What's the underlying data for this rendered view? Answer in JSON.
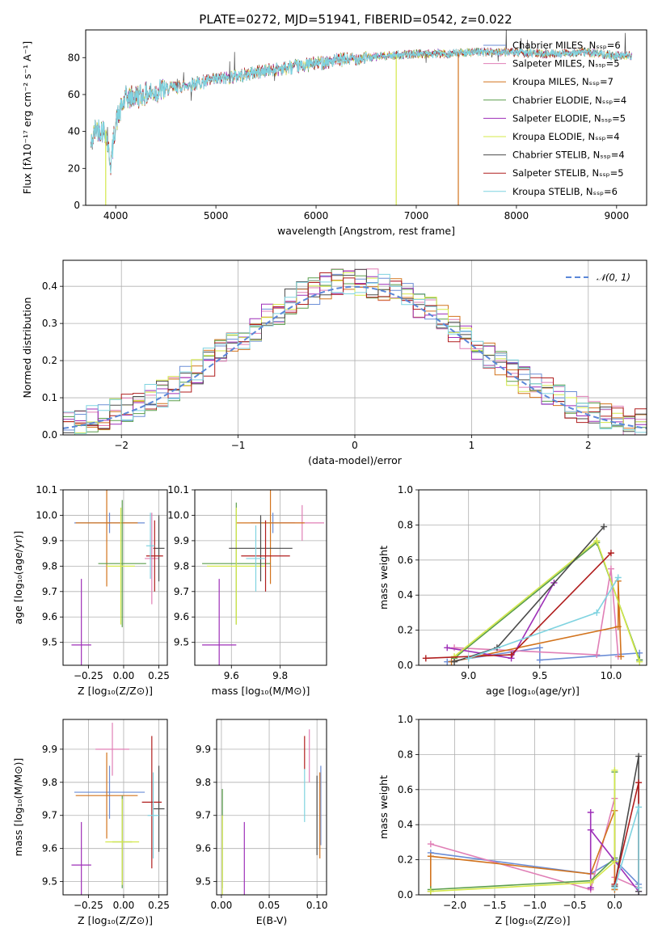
{
  "chart_data": [
    {
      "type": "line",
      "title": "PLATE=0272, MJD=51941, FIBERID=0542, z=0.022",
      "xlabel": "wavelength [Angstrom, rest frame]",
      "ylabel": "Flux [fλ10⁻¹⁷ erg cm⁻² s⁻¹ A⁻¹]",
      "xlim": [
        3700,
        9300
      ],
      "ylim": [
        0,
        95
      ],
      "xticks": [
        "4000",
        "5000",
        "6000",
        "7000",
        "8000",
        "9000"
      ],
      "yticks": [
        "0",
        "20",
        "40",
        "60",
        "80"
      ],
      "legend_position": "upper right",
      "series": [
        {
          "name": "Chabrier MILES, N_SSP=6",
          "color": "#6b8dd6"
        },
        {
          "name": "Salpeter MILES, N_SSP=5",
          "color": "#e07fb6"
        },
        {
          "name": "Kroupa MILES, N_SSP=7",
          "color": "#d2731d"
        },
        {
          "name": "Chabrier ELODIE, N_SSP=4",
          "color": "#5a9e4b"
        },
        {
          "name": "Salpeter ELODIE, N_SSP=5",
          "color": "#9e2fb8"
        },
        {
          "name": "Kroupa ELODIE, N_SSP=4",
          "color": "#d4e84a"
        },
        {
          "name": "Chabrier STELIB, N_SSP=4",
          "color": "#4a4a4a"
        },
        {
          "name": "Salpeter STELIB, N_SSP=5",
          "color": "#b01e1e"
        },
        {
          "name": "Kroupa STELIB, N_SSP=6",
          "color": "#7fd3e0"
        }
      ],
      "spectrum_trend": [
        [
          3750,
          32
        ],
        [
          3800,
          42
        ],
        [
          3900,
          40
        ],
        [
          3950,
          22
        ],
        [
          4000,
          45
        ],
        [
          4100,
          58
        ],
        [
          4300,
          60
        ],
        [
          4500,
          63
        ],
        [
          4800,
          66
        ],
        [
          5000,
          68
        ],
        [
          5200,
          70
        ],
        [
          5500,
          73
        ],
        [
          5800,
          75
        ],
        [
          6000,
          77
        ],
        [
          6300,
          79
        ],
        [
          6500,
          80
        ],
        [
          6700,
          81
        ],
        [
          7000,
          82
        ],
        [
          7300,
          82
        ],
        [
          7600,
          83
        ],
        [
          7900,
          83
        ],
        [
          8300,
          82
        ],
        [
          8700,
          83
        ],
        [
          9000,
          81
        ],
        [
          9150,
          81
        ]
      ],
      "dropouts": [
        {
          "x": 3900,
          "series": "Kroupa ELODIE, N_SSP=4"
        },
        {
          "x": 6800,
          "series": "Kroupa ELODIE, N_SSP=4"
        },
        {
          "x": 7420,
          "series": "Kroupa MILES, N_SSP=7"
        }
      ]
    },
    {
      "type": "line",
      "xlabel": "(data-model)/error",
      "ylabel": "Normed distribution",
      "xlim": [
        -2.5,
        2.5
      ],
      "ylim": [
        0,
        0.47
      ],
      "xticks": [
        "−2",
        "−1",
        "0",
        "1",
        "2"
      ],
      "yticks": [
        "0.0",
        "0.1",
        "0.2",
        "0.3",
        "0.4"
      ],
      "grid": true,
      "legend_position": "upper right",
      "reference_curve": {
        "name": "𝒩(0, 1)",
        "color": "#5b87d8",
        "mean": 0,
        "sigma": 1
      },
      "bin_width": 0.1,
      "histograms": "one step histogram per model, each following the N(0,1) curve with scatter of about ±0.04"
    },
    {
      "type": "scatter",
      "xlabel": "Z [log₁₀(Z/Z⊙)]",
      "ylabel": "age  [log₁₀(age/yr)]",
      "xlim": [
        -0.43,
        0.31
      ],
      "ylim": [
        9.41,
        10.1
      ],
      "xticks": [
        "−0.25",
        "0.00",
        "0.25"
      ],
      "yticks": [
        "9.5",
        "9.6",
        "9.7",
        "9.8",
        "9.9",
        "10.0",
        "10.1"
      ],
      "grid": true,
      "points": [
        {
          "series": "Chabrier MILES",
          "x": -0.1,
          "y": 9.97,
          "xerr": 0.25,
          "yerr": 0.04
        },
        {
          "series": "Salpeter MILES",
          "x": 0.2,
          "y": 9.83,
          "xerr": 0.05,
          "yerr": 0.18
        },
        {
          "series": "Kroupa MILES",
          "x": -0.12,
          "y": 9.97,
          "xerr": 0.22,
          "yerr": 0.25
        },
        {
          "series": "Chabrier ELODIE",
          "x": -0.01,
          "y": 9.81,
          "xerr": 0.17,
          "yerr": 0.25
        },
        {
          "series": "Salpeter ELODIE",
          "x": -0.3,
          "y": 9.49,
          "xerr": 0.07,
          "yerr": 0.26
        },
        {
          "series": "Kroupa ELODIE",
          "x": -0.02,
          "y": 9.8,
          "xerr": 0.1,
          "yerr": 0.23
        },
        {
          "series": "Chabrier STELIB",
          "x": 0.25,
          "y": 9.87,
          "xerr": 0.04,
          "yerr": 0.13
        },
        {
          "series": "Salpeter STELIB",
          "x": 0.22,
          "y": 9.84,
          "xerr": 0.06,
          "yerr": 0.14
        },
        {
          "series": "Kroupa STELIB",
          "x": 0.19,
          "y": 9.88,
          "xerr": 0.03,
          "yerr": 0.13
        }
      ]
    },
    {
      "type": "scatter",
      "xlabel": "mass [log₁₀(M/M⊙)]",
      "ylabel": "",
      "xlim": [
        9.45,
        9.99
      ],
      "ylim": [
        9.41,
        10.1
      ],
      "xticks": [
        "9.6",
        "9.8"
      ],
      "yticks": [
        "9.5",
        "9.6",
        "9.7",
        "9.8",
        "9.9",
        "10.0",
        "10.1"
      ],
      "grid": true,
      "points": [
        {
          "series": "Chabrier MILES",
          "x": 9.77,
          "y": 9.97,
          "xerr": 0.09,
          "yerr": 0.04
        },
        {
          "series": "Salpeter MILES",
          "x": 9.89,
          "y": 9.97,
          "xerr": 0.09,
          "yerr": 0.07
        },
        {
          "series": "Kroupa MILES",
          "x": 9.76,
          "y": 9.97,
          "xerr": 0.14,
          "yerr": 0.24
        },
        {
          "series": "Chabrier ELODIE",
          "x": 9.62,
          "y": 9.81,
          "xerr": 0.14,
          "yerr": 0.24
        },
        {
          "series": "Salpeter ELODIE",
          "x": 9.55,
          "y": 9.49,
          "xerr": 0.07,
          "yerr": 0.26
        },
        {
          "series": "Kroupa ELODIE",
          "x": 9.62,
          "y": 9.8,
          "xerr": 0.12,
          "yerr": 0.23
        },
        {
          "series": "Chabrier STELIB",
          "x": 9.72,
          "y": 9.87,
          "xerr": 0.13,
          "yerr": 0.13
        },
        {
          "series": "Salpeter STELIB",
          "x": 9.74,
          "y": 9.84,
          "xerr": 0.1,
          "yerr": 0.14
        },
        {
          "series": "Kroupa STELIB",
          "x": 9.7,
          "y": 9.83,
          "xerr": 0.04,
          "yerr": 0.13
        }
      ]
    },
    {
      "type": "line",
      "xlabel": "age  [log₁₀(age/yr)]",
      "ylabel": "mass weight",
      "xlim": [
        8.65,
        10.25
      ],
      "ylim": [
        0,
        1
      ],
      "xticks": [
        "9.0",
        "9.5",
        "10.0"
      ],
      "yticks": [
        "0.0",
        "0.2",
        "0.4",
        "0.6",
        "0.8",
        "1.0"
      ],
      "grid": true,
      "series": [
        {
          "name": "Chabrier MILES",
          "x": [
            8.85,
            9.5,
            9.5,
            10.2,
            10.2
          ],
          "y": [
            0.02,
            0.1,
            0.03,
            0.07,
            0.03
          ]
        },
        {
          "name": "Salpeter MILES",
          "x": [
            8.9,
            9.9,
            10.0,
            10.05
          ],
          "y": [
            0.1,
            0.06,
            0.55,
            0.05
          ]
        },
        {
          "name": "Kroupa MILES",
          "x": [
            8.88,
            10.05,
            10.05,
            10.07
          ],
          "y": [
            0.02,
            0.22,
            0.48,
            0.05
          ]
        },
        {
          "name": "Chabrier ELODIE",
          "x": [
            8.9,
            9.9,
            10.2
          ],
          "y": [
            0.04,
            0.7,
            0.03
          ]
        },
        {
          "name": "Salpeter ELODIE",
          "x": [
            8.85,
            9.3,
            9.6
          ],
          "y": [
            0.1,
            0.04,
            0.47
          ]
        },
        {
          "name": "Kroupa ELODIE",
          "x": [
            8.9,
            9.9,
            10.2
          ],
          "y": [
            0.05,
            0.71,
            0.02
          ]
        },
        {
          "name": "Chabrier STELIB",
          "x": [
            8.9,
            9.2,
            9.95
          ],
          "y": [
            0.02,
            0.1,
            0.79
          ]
        },
        {
          "name": "Salpeter STELIB",
          "x": [
            8.7,
            9.3,
            10.0
          ],
          "y": [
            0.04,
            0.06,
            0.64
          ]
        },
        {
          "name": "Kroupa STELIB",
          "x": [
            9.0,
            9.9,
            10.05
          ],
          "y": [
            0.04,
            0.3,
            0.5
          ]
        }
      ]
    },
    {
      "type": "scatter",
      "xlabel": "Z [log₁₀(Z/Z⊙)]",
      "ylabel": "mass [log₁₀(M/M⊙)]",
      "xlim": [
        -0.43,
        0.31
      ],
      "ylim": [
        9.46,
        9.99
      ],
      "xticks": [
        "−0.25",
        "0.00",
        "0.25"
      ],
      "yticks": [
        "9.5",
        "9.6",
        "9.7",
        "9.8",
        "9.9"
      ],
      "grid": true,
      "points": [
        {
          "series": "Chabrier MILES",
          "x": -0.1,
          "y": 9.77,
          "xerr": 0.25,
          "yerr": 0.08
        },
        {
          "series": "Salpeter MILES",
          "x": -0.08,
          "y": 9.9,
          "xerr": 0.12,
          "yerr": 0.08
        },
        {
          "series": "Kroupa MILES",
          "x": -0.12,
          "y": 9.76,
          "xerr": 0.22,
          "yerr": 0.13
        },
        {
          "series": "Chabrier ELODIE",
          "x": -0.01,
          "y": 9.62,
          "xerr": 0.07,
          "yerr": 0.14
        },
        {
          "series": "Salpeter ELODIE",
          "x": -0.3,
          "y": 9.55,
          "xerr": 0.07,
          "yerr": 0.13
        },
        {
          "series": "Kroupa ELODIE",
          "x": -0.01,
          "y": 9.62,
          "xerr": 0.12,
          "yerr": 0.13
        },
        {
          "series": "Chabrier STELIB",
          "x": 0.25,
          "y": 9.72,
          "xerr": 0.04,
          "yerr": 0.13
        },
        {
          "series": "Salpeter STELIB",
          "x": 0.2,
          "y": 9.74,
          "xerr": 0.07,
          "yerr": 0.2
        },
        {
          "series": "Kroupa STELIB",
          "x": 0.21,
          "y": 9.7,
          "xerr": 0.04,
          "yerr": 0.13
        }
      ]
    },
    {
      "type": "scatter",
      "xlabel": "E(B-V)",
      "ylabel": "",
      "xlim": [
        -0.005,
        0.11
      ],
      "ylim": [
        9.46,
        9.99
      ],
      "xticks": [
        "0.00",
        "0.05",
        "0.10"
      ],
      "yticks": [
        "9.5",
        "9.6",
        "9.7",
        "9.8",
        "9.9"
      ],
      "grid": true,
      "points": [
        {
          "series": "Chabrier MILES",
          "x": 0.104,
          "y": 9.73,
          "yerr": 0.12
        },
        {
          "series": "Salpeter MILES",
          "x": 0.092,
          "y": 9.88,
          "yerr": 0.08
        },
        {
          "series": "Kroupa MILES",
          "x": 0.103,
          "y": 9.7,
          "yerr": 0.13
        },
        {
          "series": "Chabrier ELODIE",
          "x": 0.001,
          "y": 9.63,
          "yerr": 0.15
        },
        {
          "series": "Salpeter ELODIE",
          "x": 0.024,
          "y": 9.57,
          "yerr": 0.11
        },
        {
          "series": "Kroupa ELODIE",
          "x": 0.001,
          "y": 9.58,
          "yerr": 0.12
        },
        {
          "series": "Chabrier STELIB",
          "x": 0.1,
          "y": 9.7,
          "yerr": 0.12
        },
        {
          "series": "Salpeter STELIB",
          "x": 0.087,
          "y": 9.89,
          "yerr": 0.05
        },
        {
          "series": "Kroupa STELIB",
          "x": 0.087,
          "y": 9.76,
          "yerr": 0.08
        }
      ]
    },
    {
      "type": "line",
      "xlabel": "Z [log₁₀(Z/Z⊙)]",
      "ylabel": "mass weight",
      "xlim": [
        -2.45,
        0.4
      ],
      "ylim": [
        0,
        1
      ],
      "xticks": [
        "−2.0",
        "−1.5",
        "−1.0",
        "−0.5",
        "0.0"
      ],
      "yticks": [
        "0.0",
        "0.2",
        "0.4",
        "0.6",
        "0.8",
        "1.0"
      ],
      "grid": true,
      "series": [
        {
          "name": "Chabrier MILES",
          "x": [
            -2.3,
            -0.3,
            0.0,
            0.3,
            0.3
          ],
          "y": [
            0.24,
            0.12,
            0.2,
            0.06,
            0.02
          ]
        },
        {
          "name": "Salpeter MILES",
          "x": [
            -2.3,
            -0.3,
            0.0,
            0.0,
            0.3
          ],
          "y": [
            0.29,
            0.03,
            0.55,
            0.1,
            0.04
          ]
        },
        {
          "name": "Kroupa MILES",
          "x": [
            -2.3,
            -2.3,
            -0.3,
            0.0,
            0.0
          ],
          "y": [
            0.02,
            0.22,
            0.12,
            0.48,
            0.03
          ]
        },
        {
          "name": "Chabrier ELODIE",
          "x": [
            -2.3,
            -0.3,
            0.0,
            0.0
          ],
          "y": [
            0.03,
            0.08,
            0.21,
            0.7
          ]
        },
        {
          "name": "Salpeter ELODIE",
          "x": [
            -0.3,
            -0.3,
            -0.3,
            0.3
          ],
          "y": [
            0.47,
            0.04,
            0.37,
            0.02
          ]
        },
        {
          "name": "Kroupa ELODIE",
          "x": [
            -2.3,
            -0.3,
            0.0,
            0.0
          ],
          "y": [
            0.02,
            0.07,
            0.19,
            0.71
          ]
        },
        {
          "name": "Chabrier STELIB",
          "x": [
            0.0,
            0.3,
            0.3
          ],
          "y": [
            0.05,
            0.79,
            0.02
          ]
        },
        {
          "name": "Salpeter STELIB",
          "x": [
            0.0,
            0.3,
            0.3
          ],
          "y": [
            0.06,
            0.64,
            0.04
          ]
        },
        {
          "name": "Kroupa STELIB",
          "x": [
            0.0,
            0.3,
            0.3
          ],
          "y": [
            0.04,
            0.5,
            0.04
          ]
        }
      ]
    }
  ]
}
